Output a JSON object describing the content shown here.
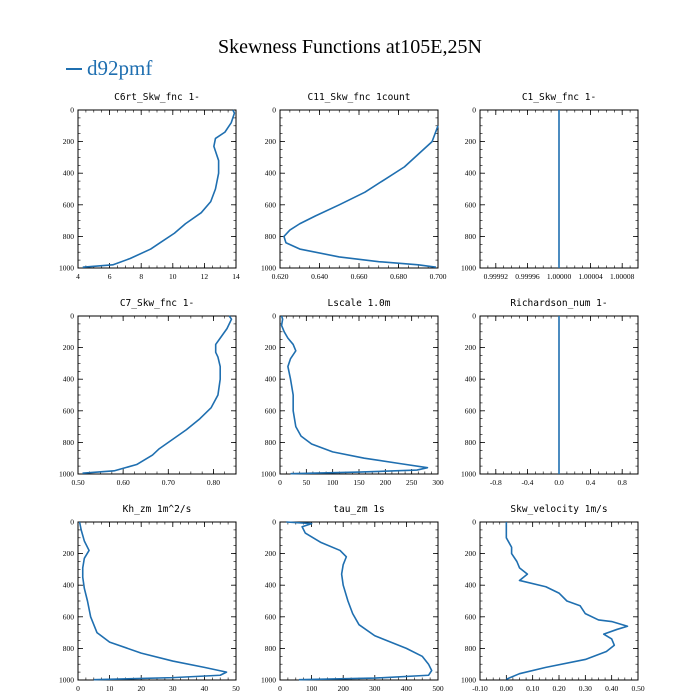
{
  "title": "Skewness Functions at105E,25N",
  "legend": {
    "label": "d92pmf",
    "color": "#1f6fb0"
  },
  "chart_data": [
    {
      "type": "line",
      "title": "C6rt_Skw_fnc   1-",
      "xlim": [
        4,
        14
      ],
      "ylim": [
        1000,
        0
      ],
      "xticks": [
        {
          "v": 4,
          "t": "4"
        },
        {
          "v": 6,
          "t": "6"
        },
        {
          "v": 8,
          "t": "8"
        },
        {
          "v": 10,
          "t": "10"
        },
        {
          "v": 12,
          "t": "12"
        },
        {
          "v": 14,
          "t": "14"
        }
      ],
      "yticks": [
        0,
        200,
        400,
        600,
        800,
        1000
      ],
      "x": [
        13.8,
        13.9,
        13.7,
        13.3,
        12.7,
        12.6,
        12.7,
        12.9,
        12.9,
        12.7,
        12.4,
        11.8,
        10.8,
        10.1,
        9.2,
        8.6,
        7.3,
        6.2,
        4.3
      ],
      "y": [
        0,
        20,
        80,
        140,
        180,
        230,
        260,
        320,
        400,
        500,
        580,
        650,
        720,
        780,
        840,
        880,
        940,
        980,
        995
      ]
    },
    {
      "type": "line",
      "title": "C11_Skw_fnc   1count",
      "xlim": [
        0.62,
        0.7
      ],
      "ylim": [
        1000,
        0
      ],
      "xticks": [
        {
          "v": 0.62,
          "t": "0.620"
        },
        {
          "v": 0.64,
          "t": "0.640"
        },
        {
          "v": 0.66,
          "t": "0.660"
        },
        {
          "v": 0.68,
          "t": "0.680"
        },
        {
          "v": 0.7,
          "t": "0.700"
        }
      ],
      "yticks": [
        0,
        200,
        400,
        600,
        800,
        1000
      ],
      "x": [
        0.7,
        0.697,
        0.69,
        0.683,
        0.673,
        0.663,
        0.65,
        0.638,
        0.63,
        0.625,
        0.622,
        0.623,
        0.63,
        0.65,
        0.67,
        0.69,
        0.699
      ],
      "y": [
        100,
        200,
        280,
        360,
        440,
        520,
        600,
        670,
        720,
        760,
        800,
        840,
        880,
        930,
        960,
        980,
        995
      ]
    },
    {
      "type": "line",
      "title": "C1_Skw_fnc   1-",
      "xlim": [
        0.9999,
        1.0001
      ],
      "ylim": [
        1000,
        0
      ],
      "xticks": [
        {
          "v": 0.99992,
          "t": "0.99992"
        },
        {
          "v": 0.99996,
          "t": "0.99996"
        },
        {
          "v": 1.0,
          "t": "1.00000"
        },
        {
          "v": 1.00004,
          "t": "1.00004"
        },
        {
          "v": 1.00008,
          "t": "1.00008"
        }
      ],
      "yticks": [
        0,
        200,
        400,
        600,
        800,
        1000
      ],
      "x": [
        1.0,
        1.0
      ],
      "y": [
        0,
        1000
      ]
    },
    {
      "type": "line",
      "title": "C7_Skw_fnc   1-",
      "xlim": [
        0.5,
        0.85
      ],
      "ylim": [
        1000,
        0
      ],
      "xticks": [
        {
          "v": 0.5,
          "t": "0.50"
        },
        {
          "v": 0.6,
          "t": "0.60"
        },
        {
          "v": 0.7,
          "t": "0.70"
        },
        {
          "v": 0.8,
          "t": "0.80"
        }
      ],
      "yticks": [
        0,
        200,
        400,
        600,
        800,
        1000
      ],
      "x": [
        0.835,
        0.84,
        0.83,
        0.815,
        0.805,
        0.805,
        0.81,
        0.815,
        0.815,
        0.81,
        0.795,
        0.77,
        0.74,
        0.71,
        0.68,
        0.665,
        0.63,
        0.58,
        0.51
      ],
      "y": [
        0,
        20,
        80,
        140,
        180,
        230,
        260,
        320,
        400,
        500,
        580,
        650,
        720,
        780,
        840,
        880,
        940,
        980,
        995
      ]
    },
    {
      "type": "line",
      "title": "Lscale   1.0m",
      "xlim": [
        0,
        300
      ],
      "ylim": [
        1000,
        0
      ],
      "xticks": [
        {
          "v": 0,
          "t": "0"
        },
        {
          "v": 50,
          "t": "50"
        },
        {
          "v": 100,
          "t": "100"
        },
        {
          "v": 150,
          "t": "150"
        },
        {
          "v": 200,
          "t": "200"
        },
        {
          "v": 250,
          "t": "250"
        },
        {
          "v": 300,
          "t": "300"
        }
      ],
      "yticks": [
        0,
        200,
        400,
        600,
        800,
        1000
      ],
      "x": [
        3,
        5,
        3,
        8,
        15,
        25,
        30,
        20,
        15,
        20,
        25,
        25,
        30,
        40,
        60,
        100,
        160,
        230,
        280,
        260,
        150,
        20
      ],
      "y": [
        0,
        20,
        60,
        100,
        140,
        180,
        220,
        270,
        320,
        400,
        500,
        600,
        700,
        760,
        810,
        860,
        900,
        935,
        960,
        975,
        988,
        998
      ]
    },
    {
      "type": "line",
      "title": "Richardson_num   1-",
      "xlim": [
        -1,
        1
      ],
      "ylim": [
        1000,
        0
      ],
      "xticks": [
        {
          "v": -0.8,
          "t": "-0.8"
        },
        {
          "v": -0.4,
          "t": "-0.4"
        },
        {
          "v": 0.0,
          "t": "0.0"
        },
        {
          "v": 0.4,
          "t": "0.4"
        },
        {
          "v": 0.8,
          "t": "0.8"
        }
      ],
      "yticks": [
        0,
        200,
        400,
        600,
        800,
        1000
      ],
      "x": [
        0,
        0
      ],
      "y": [
        0,
        1000
      ]
    },
    {
      "type": "line",
      "title": "Kh_zm   1m^2/s",
      "xlim": [
        0,
        50
      ],
      "ylim": [
        1000,
        0
      ],
      "xticks": [
        {
          "v": 0,
          "t": "0"
        },
        {
          "v": 10,
          "t": "10"
        },
        {
          "v": 20,
          "t": "20"
        },
        {
          "v": 30,
          "t": "30"
        },
        {
          "v": 40,
          "t": "40"
        },
        {
          "v": 50,
          "t": "50"
        }
      ],
      "yticks": [
        0,
        200,
        400,
        600,
        800,
        1000
      ],
      "x": [
        0.5,
        1,
        2,
        3.5,
        2,
        1.5,
        1.5,
        2,
        3,
        4,
        6,
        10,
        20,
        30,
        40,
        47,
        45,
        30,
        5
      ],
      "y": [
        0,
        50,
        120,
        180,
        230,
        290,
        350,
        420,
        500,
        600,
        700,
        760,
        830,
        880,
        920,
        950,
        970,
        985,
        998
      ]
    },
    {
      "type": "line",
      "title": "tau_zm   1s",
      "xlim": [
        0,
        500
      ],
      "ylim": [
        1000,
        0
      ],
      "xticks": [
        {
          "v": 0,
          "t": "0"
        },
        {
          "v": 100,
          "t": "100"
        },
        {
          "v": 200,
          "t": "200"
        },
        {
          "v": 300,
          "t": "300"
        },
        {
          "v": 400,
          "t": "400"
        },
        {
          "v": 500,
          "t": "500"
        }
      ],
      "yticks": [
        0,
        200,
        400,
        600,
        800,
        1000
      ],
      "x": [
        20,
        100,
        70,
        80,
        130,
        190,
        210,
        200,
        195,
        200,
        215,
        230,
        250,
        300,
        400,
        450,
        470,
        480,
        470,
        300,
        60
      ],
      "y": [
        0,
        10,
        30,
        70,
        130,
        180,
        220,
        270,
        330,
        400,
        500,
        580,
        650,
        720,
        800,
        850,
        900,
        940,
        970,
        988,
        998
      ]
    },
    {
      "type": "line",
      "title": "Skw_velocity   1m/s",
      "xlim": [
        -0.1,
        0.5
      ],
      "ylim": [
        1000,
        0
      ],
      "xticks": [
        {
          "v": -0.1,
          "t": "-0.10"
        },
        {
          "v": 0.0,
          "t": "0.00"
        },
        {
          "v": 0.1,
          "t": "0.10"
        },
        {
          "v": 0.2,
          "t": "0.20"
        },
        {
          "v": 0.3,
          "t": "0.30"
        },
        {
          "v": 0.4,
          "t": "0.40"
        },
        {
          "v": 0.5,
          "t": "0.50"
        }
      ],
      "yticks": [
        0,
        200,
        400,
        600,
        800,
        1000
      ],
      "x": [
        0.0,
        0.0,
        0.02,
        0.02,
        0.04,
        0.05,
        0.08,
        0.05,
        0.15,
        0.2,
        0.23,
        0.28,
        0.3,
        0.35,
        0.4,
        0.46,
        0.42,
        0.37,
        0.4,
        0.41,
        0.38,
        0.3,
        0.15,
        0.05,
        0.0
      ],
      "y": [
        0,
        100,
        160,
        200,
        250,
        290,
        330,
        370,
        410,
        450,
        500,
        530,
        580,
        620,
        630,
        660,
        680,
        710,
        740,
        780,
        820,
        870,
        920,
        960,
        995
      ]
    }
  ]
}
